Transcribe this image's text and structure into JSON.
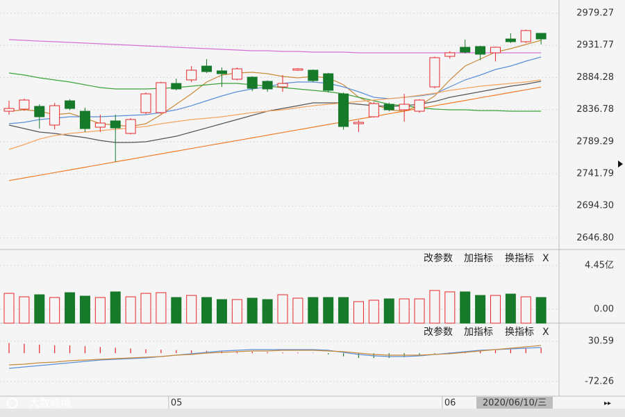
{
  "chart_data": [
    {
      "type": "candlestick",
      "categories": [
        null,
        null,
        null,
        null,
        null,
        null,
        null,
        null,
        null,
        null,
        null,
        "05",
        null,
        null,
        null,
        null,
        null,
        null,
        null,
        null,
        null,
        null,
        null,
        null,
        null,
        null,
        null,
        null,
        null,
        "06",
        null,
        null,
        null,
        null,
        null,
        null
      ],
      "open": [
        2834.3,
        2837.4,
        2841.5,
        2813.8,
        2849.7,
        2834.3,
        2810.7,
        2820.0,
        2801.4,
        2832.3,
        2832.3,
        2875.4,
        2880.6,
        2901.1,
        2894.0,
        2881.6,
        2884.7,
        2878.5,
        2870.3,
        2895.0,
        2895.0,
        2889.8,
        2860.0,
        2815.8,
        2826.1,
        2844.6,
        2836.4,
        2834.3,
        2870.3,
        2915.5,
        2928.9,
        2930.0,
        2920.7,
        2941.2,
        2937.1,
        2949.5
      ],
      "high": [
        2849.7,
        2853.0,
        2844.6,
        2846.7,
        2852.0,
        2839.5,
        2829.2,
        2829.2,
        2824.0,
        2862.0,
        2878.0,
        2882.6,
        2901.1,
        2911.4,
        2899.1,
        2899.0,
        2886.0,
        2880.0,
        2887.8,
        2898.0,
        2896.0,
        2891.0,
        2862.0,
        2821.0,
        2848.0,
        2847.0,
        2860.0,
        2852.0,
        2915.0,
        2923.0,
        2940.2,
        2931.0,
        2930.0,
        2949.5,
        2955.0,
        2949.5
      ],
      "low": [
        2829.2,
        2835.0,
        2808.6,
        2807.6,
        2836.0,
        2803.5,
        2803.5,
        2759.3,
        2800.0,
        2830.0,
        2830.0,
        2865.2,
        2877.5,
        2890.9,
        2870.3,
        2880.0,
        2864.0,
        2863.0,
        2863.1,
        2894.0,
        2877.0,
        2862.0,
        2807.0,
        2803.5,
        2825.0,
        2834.0,
        2818.9,
        2832.0,
        2868.0,
        2912.0,
        2919.7,
        2910.0,
        2908.0,
        2935.1,
        2935.0,
        2933.0
      ],
      "close": [
        2838.4,
        2850.8,
        2826.1,
        2842.5,
        2838.4,
        2808.6,
        2816.8,
        2809.6,
        2822.0,
        2860.0,
        2876.5,
        2867.2,
        2895.0,
        2892.9,
        2889.8,
        2897.0,
        2868.2,
        2867.2,
        2875.4,
        2897.0,
        2879.6,
        2865.2,
        2811.7,
        2817.9,
        2845.6,
        2836.4,
        2844.6,
        2850.8,
        2913.5,
        2920.7,
        2921.7,
        2918.6,
        2928.9,
        2937.1,
        2953.6,
        2941.2
      ],
      "up_color": "#e8262a",
      "down_color": "#17792a",
      "overlays": [
        {
          "color": "#c98a3a",
          "values": [
            2834.3,
            2836.4,
            2834.3,
            2829.2,
            2831.2,
            2824.0,
            2815.8,
            2813.8,
            2811.7,
            2815.8,
            2829.2,
            2844.6,
            2860.0,
            2877.5,
            2887.8,
            2890.9,
            2891.9,
            2889.8,
            2885.7,
            2883.7,
            2885.7,
            2883.7,
            2873.4,
            2854.9,
            2844.6,
            2836.4,
            2834.3,
            2842.5,
            2856.9,
            2880.6,
            2901.1,
            2911.4,
            2921.7,
            2926.8,
            2933.0,
            2939.2
          ]
        },
        {
          "color": "#5b8fd8",
          "values": [
            2815.8,
            2817.9,
            2822.0,
            2824.0,
            2826.1,
            2826.1,
            2826.1,
            2827.1,
            2828.2,
            2829.2,
            2832.3,
            2836.4,
            2842.5,
            2849.7,
            2856.9,
            2863.1,
            2867.2,
            2870.3,
            2875.4,
            2877.5,
            2877.5,
            2875.4,
            2870.3,
            2863.1,
            2854.9,
            2852.8,
            2854.9,
            2856.9,
            2860.0,
            2870.3,
            2880.6,
            2887.8,
            2896.0,
            2901.1,
            2908.3,
            2914.5
          ]
        },
        {
          "color": "#555555",
          "values": [
            2813.8,
            2808.6,
            2803.5,
            2801.4,
            2798.3,
            2795.3,
            2791.1,
            2788.1,
            2788.1,
            2789.1,
            2793.2,
            2797.3,
            2803.5,
            2809.6,
            2815.8,
            2822.0,
            2828.2,
            2834.3,
            2838.4,
            2842.5,
            2846.7,
            2846.7,
            2846.7,
            2844.6,
            2842.5,
            2841.5,
            2842.5,
            2844.6,
            2848.7,
            2854.9,
            2859.0,
            2863.1,
            2867.2,
            2871.3,
            2874.4,
            2878.5
          ]
        },
        {
          "color": "#3aa33a",
          "values": [
            2890.9,
            2887.8,
            2883.7,
            2880.6,
            2877.5,
            2873.4,
            2869.3,
            2867.2,
            2867.2,
            2867.2,
            2868.2,
            2869.3,
            2871.3,
            2873.4,
            2875.4,
            2875.4,
            2873.4,
            2871.3,
            2869.3,
            2867.2,
            2865.2,
            2863.1,
            2860.0,
            2854.9,
            2849.7,
            2844.6,
            2842.5,
            2839.5,
            2837.4,
            2836.4,
            2836.4,
            2835.3,
            2835.3,
            2834.3,
            2834.3,
            2834.3
          ]
        },
        {
          "color": "#f4a460",
          "values": [
            2777.8,
            2785.0,
            2793.2,
            2798.3,
            2801.4,
            2803.5,
            2805.5,
            2807.6,
            2809.6,
            2811.7,
            2815.8,
            2818.9,
            2822.0,
            2824.0,
            2826.1,
            2829.2,
            2832.3,
            2834.3,
            2836.4,
            2839.5,
            2842.5,
            2844.6,
            2846.7,
            2848.7,
            2850.8,
            2852.8,
            2854.9,
            2857.9,
            2861.0,
            2865.2,
            2868.2,
            2871.3,
            2873.4,
            2875.4,
            2877.5,
            2880.6
          ]
        },
        {
          "color": "#d670d6",
          "values": [
            2940.2,
            2939.2,
            2938.1,
            2937.1,
            2936.1,
            2935.1,
            2934.0,
            2933.0,
            2932.0,
            2930.9,
            2929.9,
            2928.9,
            2927.9,
            2926.8,
            2925.8,
            2924.8,
            2923.8,
            2923.8,
            2922.7,
            2922.7,
            2921.7,
            2921.7,
            2921.7,
            2920.7,
            2920.7,
            2920.7,
            2920.7,
            2920.7,
            2920.7,
            2920.7,
            2920.7,
            2920.7,
            2920.7,
            2920.7,
            2920.7,
            2920.7
          ]
        },
        {
          "color": "#f07c2a",
          "values": [
            2731.7,
            2735.7,
            2739.6,
            2743.6,
            2747.5,
            2751.5,
            2755.4,
            2759.4,
            2763.3,
            2767.3,
            2771.2,
            2775.2,
            2779.1,
            2783.1,
            2787.0,
            2791.0,
            2794.9,
            2798.9,
            2802.8,
            2806.8,
            2810.7,
            2814.7,
            2818.6,
            2822.6,
            2826.5,
            2830.5,
            2834.4,
            2838.4,
            2842.3,
            2846.3,
            2850.2,
            2854.2,
            2858.1,
            2862.1,
            2866.0,
            2870.0
          ]
        }
      ],
      "ylim": [
        2630.8,
        2998.8
      ],
      "yticks": [
        2979.27,
        2931.77,
        2884.28,
        2836.78,
        2789.29,
        2741.79,
        {
          "value": 2694.3,
          "label": "2694.30"
        },
        {
          "value": 2646.8,
          "label": "2646.80"
        }
      ],
      "grid": true
    },
    {
      "type": "bar",
      "values": [
        1.62,
        1.27,
        1.48,
        1.2,
        1.69,
        1.34,
        1.2,
        1.77,
        1.27,
        1.62,
        1.69,
        1.2,
        1.41,
        1.2,
        0.99,
        0.99,
        1.13,
        0.99,
        1.48,
        1.13,
        1.2,
        1.2,
        1.2,
        0.78,
        0.92,
        1.06,
        1.06,
        1.06,
        1.91,
        1.77,
        1.77,
        1.41,
        1.41,
        1.55,
        1.27,
        1.2
      ],
      "up_color": "#e8262a",
      "down_color": "#17792a",
      "ylim": [
        -1.41,
        5.86
      ],
      "yticks": [
        {
          "value": 4.45,
          "label": "4.45亿"
        },
        {
          "value": 0,
          "label": "0.00"
        }
      ],
      "grid": true
    },
    {
      "type": "macd",
      "histogram": [
        26,
        24,
        22,
        20,
        20,
        18,
        16,
        14,
        12,
        10,
        9,
        8,
        7,
        6,
        6,
        5,
        4,
        3,
        2,
        2,
        1,
        -3,
        -8,
        -12,
        -12,
        -12,
        -10,
        -6,
        -2,
        2,
        4,
        6,
        8,
        10,
        12,
        14
      ],
      "up_color": "#e8262a",
      "down_color": "#17792a",
      "overlays": [
        {
          "color": "#5b8fd8",
          "values": [
            -38.6,
            -35.0,
            -31.5,
            -27.9,
            -24.4,
            -20.8,
            -17.3,
            -15.5,
            -13.7,
            -12.0,
            -8.4,
            -4.9,
            -1.3,
            2.2,
            5.8,
            7.5,
            9.3,
            9.3,
            9.3,
            9.3,
            9.3,
            7.5,
            2.2,
            -3.1,
            -6.6,
            -8.4,
            -8.4,
            -6.6,
            -3.1,
            0.5,
            4.0,
            7.5,
            9.3,
            11.1,
            12.9,
            14.6
          ]
        },
        {
          "color": "#c98a3a",
          "values": [
            -29.7,
            -27.9,
            -24.4,
            -22.6,
            -19.0,
            -17.3,
            -15.5,
            -13.7,
            -12.0,
            -10.2,
            -8.4,
            -4.9,
            -3.1,
            0.5,
            2.2,
            4.0,
            5.8,
            5.8,
            7.5,
            7.5,
            7.5,
            5.8,
            4.0,
            0.5,
            -3.1,
            -4.9,
            -4.9,
            -4.9,
            -3.1,
            -1.3,
            2.2,
            5.8,
            9.3,
            12.9,
            16.4,
            19.9
          ]
        }
      ],
      "ylim": [
        -107.7,
        74.9
      ],
      "yticks": [
        30.59,
        -72.26
      ],
      "grid": true
    }
  ],
  "toolbar": {
    "buttons": [
      "改参数",
      "加指标",
      "换指标"
    ],
    "close": "X"
  },
  "cursor_date": "2020/06/10/三",
  "watermark": "大数跨境"
}
